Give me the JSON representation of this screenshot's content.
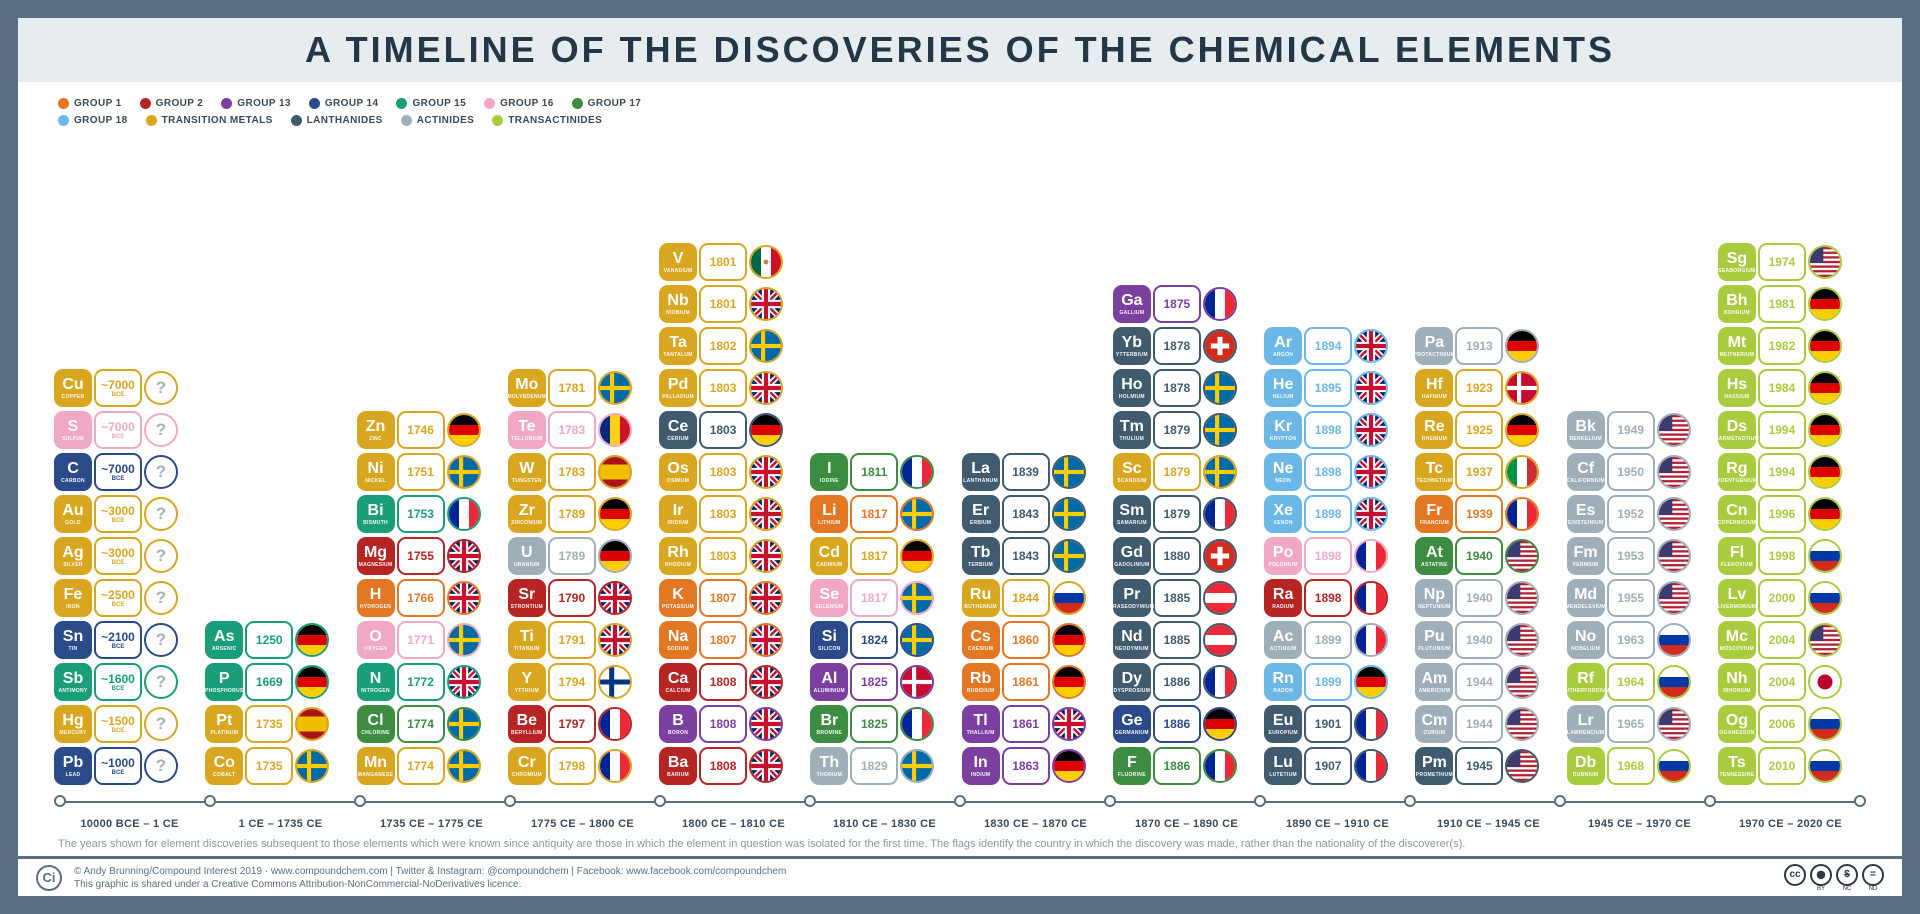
{
  "title": "A TIMELINE OF THE DISCOVERIES OF THE CHEMICAL ELEMENTS",
  "group_colors": {
    "g1": "#e37824",
    "g2": "#b62424",
    "g13": "#7b3fa0",
    "g14": "#2b4a8a",
    "g15": "#1a9e7a",
    "g16": "#f0a8c5",
    "g17": "#3c8c42",
    "g18": "#6bb7e6",
    "tm": "#d9a61f",
    "la": "#3f5b6d",
    "ac": "#9fafba",
    "ta": "#a9cc3e"
  },
  "legend_rows": [
    [
      {
        "label": "GROUP 1",
        "g": "g1"
      },
      {
        "label": "GROUP 2",
        "g": "g2"
      },
      {
        "label": "GROUP 13",
        "g": "g13"
      },
      {
        "label": "GROUP 14",
        "g": "g14"
      },
      {
        "label": "GROUP 15",
        "g": "g15"
      },
      {
        "label": "GROUP 16",
        "g": "g16"
      },
      {
        "label": "GROUP 17",
        "g": "g17"
      }
    ],
    [
      {
        "label": "GROUP 18",
        "g": "g18"
      },
      {
        "label": "TRANSITION METALS",
        "g": "tm"
      },
      {
        "label": "LANTHANIDES",
        "g": "la"
      },
      {
        "label": "ACTINIDES",
        "g": "ac"
      },
      {
        "label": "TRANSACTINIDES",
        "g": "ta"
      }
    ]
  ],
  "axis_labels": [
    "10000 BCE – 1 CE",
    "1 CE – 1735 CE",
    "1735 CE – 1775 CE",
    "1775 CE – 1800 CE",
    "1800 CE – 1810 CE",
    "1810 CE – 1830 CE",
    "1830 CE – 1870 CE",
    "1870 CE – 1890 CE",
    "1890 CE – 1910 CE",
    "1910 CE – 1945 CE",
    "1945 CE – 1970 CE",
    "1970 CE – 2020 CE"
  ],
  "note": "The years shown for element discoveries subsequent to those elements which were known since antiquity are those in which the element in question was isolated for the first time. The flags identify the country in which the discovery was made, rather than the nationality of the discoverer(s).",
  "footer": {
    "line1": "© Andy Brunning/Compound Interest 2019 · www.compoundchem.com  |  Twitter & Instagram: @compoundchem  |  Facebook: www.facebook.com/compoundchem",
    "line2": "This graphic is shared under a Creative Commons Attribution-NonCommercial-NoDerivatives licence.",
    "cc": [
      "CC",
      "BY",
      "NC",
      "ND"
    ]
  },
  "columns": [
    [
      {
        "sym": "Pb",
        "nm": "LEAD",
        "yr": "~1000",
        "era": "BCE",
        "g": "g14",
        "f": "?"
      },
      {
        "sym": "Hg",
        "nm": "MERCURY",
        "yr": "~1500",
        "era": "BCE",
        "g": "tm",
        "f": "?"
      },
      {
        "sym": "Sb",
        "nm": "ANTIMONY",
        "yr": "~1600",
        "era": "BCE",
        "g": "g15",
        "f": "?"
      },
      {
        "sym": "Sn",
        "nm": "TIN",
        "yr": "~2100",
        "era": "BCE",
        "g": "g14",
        "f": "?"
      },
      {
        "sym": "Fe",
        "nm": "IRON",
        "yr": "~2500",
        "era": "BCE",
        "g": "tm",
        "f": "?"
      },
      {
        "sym": "Ag",
        "nm": "SILVER",
        "yr": "~3000",
        "era": "BCE",
        "g": "tm",
        "f": "?"
      },
      {
        "sym": "Au",
        "nm": "GOLD",
        "yr": "~3000",
        "era": "BCE",
        "g": "tm",
        "f": "?"
      },
      {
        "sym": "C",
        "nm": "CARBON",
        "yr": "~7000",
        "era": "BCE",
        "g": "g14",
        "f": "?"
      },
      {
        "sym": "S",
        "nm": "SULFUR",
        "yr": "~7000",
        "era": "BCE",
        "g": "g16",
        "f": "?"
      },
      {
        "sym": "Cu",
        "nm": "COPPER",
        "yr": "~7000",
        "era": "BCE",
        "g": "tm",
        "f": "?"
      }
    ],
    [
      {
        "sym": "Co",
        "nm": "COBALT",
        "yr": "1735",
        "g": "tm",
        "f": "se"
      },
      {
        "sym": "Pt",
        "nm": "PLATINUM",
        "yr": "1735",
        "g": "tm",
        "f": "es"
      },
      {
        "sym": "P",
        "nm": "PHOSPHORUS",
        "yr": "1669",
        "g": "g15",
        "f": "de"
      },
      {
        "sym": "As",
        "nm": "ARSENIC",
        "yr": "1250",
        "g": "g15",
        "f": "de"
      }
    ],
    [
      {
        "sym": "Mn",
        "nm": "MANGANESE",
        "yr": "1774",
        "g": "tm",
        "f": "se"
      },
      {
        "sym": "Cl",
        "nm": "CHLORINE",
        "yr": "1774",
        "g": "g17",
        "f": "se"
      },
      {
        "sym": "N",
        "nm": "NITROGEN",
        "yr": "1772",
        "g": "g15",
        "f": "uk"
      },
      {
        "sym": "O",
        "nm": "OXYGEN",
        "yr": "1771",
        "g": "g16",
        "f": "se"
      },
      {
        "sym": "H",
        "nm": "HYDROGEN",
        "yr": "1766",
        "g": "g1",
        "f": "uk"
      },
      {
        "sym": "Mg",
        "nm": "MAGNESIUM",
        "yr": "1755",
        "g": "g2",
        "f": "uk"
      },
      {
        "sym": "Bi",
        "nm": "BISMUTH",
        "yr": "1753",
        "g": "g15",
        "f": "fr"
      },
      {
        "sym": "Ni",
        "nm": "NICKEL",
        "yr": "1751",
        "g": "tm",
        "f": "se"
      },
      {
        "sym": "Zn",
        "nm": "ZINC",
        "yr": "1746",
        "g": "tm",
        "f": "de"
      }
    ],
    [
      {
        "sym": "Cr",
        "nm": "CHROMIUM",
        "yr": "1798",
        "g": "tm",
        "f": "fr"
      },
      {
        "sym": "Be",
        "nm": "BERYLLIUM",
        "yr": "1797",
        "g": "g2",
        "f": "fr"
      },
      {
        "sym": "Y",
        "nm": "YTTRIUM",
        "yr": "1794",
        "g": "tm",
        "f": "fi"
      },
      {
        "sym": "Ti",
        "nm": "TITANIUM",
        "yr": "1791",
        "g": "tm",
        "f": "uk"
      },
      {
        "sym": "Sr",
        "nm": "STRONTIUM",
        "yr": "1790",
        "g": "g2",
        "f": "uk"
      },
      {
        "sym": "U",
        "nm": "URANIUM",
        "yr": "1789",
        "g": "ac",
        "f": "de"
      },
      {
        "sym": "Zr",
        "nm": "ZIRCONIUM",
        "yr": "1789",
        "g": "tm",
        "f": "de"
      },
      {
        "sym": "W",
        "nm": "TUNGSTEN",
        "yr": "1783",
        "g": "tm",
        "f": "es"
      },
      {
        "sym": "Te",
        "nm": "TELLURIUM",
        "yr": "1783",
        "g": "g16",
        "f": "ro"
      },
      {
        "sym": "Mo",
        "nm": "MOLYBDENUM",
        "yr": "1781",
        "g": "tm",
        "f": "se"
      }
    ],
    [
      {
        "sym": "Ba",
        "nm": "BARIUM",
        "yr": "1808",
        "g": "g2",
        "f": "uk"
      },
      {
        "sym": "B",
        "nm": "BORON",
        "yr": "1808",
        "g": "g13",
        "f": "uk"
      },
      {
        "sym": "Ca",
        "nm": "CALCIUM",
        "yr": "1808",
        "g": "g2",
        "f": "uk"
      },
      {
        "sym": "Na",
        "nm": "SODIUM",
        "yr": "1807",
        "g": "g1",
        "f": "uk"
      },
      {
        "sym": "K",
        "nm": "POTASSIUM",
        "yr": "1807",
        "g": "g1",
        "f": "uk"
      },
      {
        "sym": "Rh",
        "nm": "RHODIUM",
        "yr": "1803",
        "g": "tm",
        "f": "uk"
      },
      {
        "sym": "Ir",
        "nm": "IRIDIUM",
        "yr": "1803",
        "g": "tm",
        "f": "uk"
      },
      {
        "sym": "Os",
        "nm": "OSMIUM",
        "yr": "1803",
        "g": "tm",
        "f": "uk"
      },
      {
        "sym": "Ce",
        "nm": "CERIUM",
        "yr": "1803",
        "g": "la",
        "f": "de"
      },
      {
        "sym": "Pd",
        "nm": "PALLADIUM",
        "yr": "1803",
        "g": "tm",
        "f": "uk"
      },
      {
        "sym": "Ta",
        "nm": "TANTALUM",
        "yr": "1802",
        "g": "tm",
        "f": "se"
      },
      {
        "sym": "Nb",
        "nm": "NIOBIUM",
        "yr": "1801",
        "g": "tm",
        "f": "uk"
      },
      {
        "sym": "V",
        "nm": "VANADIUM",
        "yr": "1801",
        "g": "tm",
        "f": "mx"
      }
    ],
    [
      {
        "sym": "Th",
        "nm": "THORIUM",
        "yr": "1829",
        "g": "ac",
        "f": "se"
      },
      {
        "sym": "Br",
        "nm": "BROMINE",
        "yr": "1825",
        "g": "g17",
        "f": "fr"
      },
      {
        "sym": "Al",
        "nm": "ALUMINIUM",
        "yr": "1825",
        "g": "g13",
        "f": "dk"
      },
      {
        "sym": "Si",
        "nm": "SILICON",
        "yr": "1824",
        "g": "g14",
        "f": "se"
      },
      {
        "sym": "Se",
        "nm": "SELENIUM",
        "yr": "1817",
        "g": "g16",
        "f": "se"
      },
      {
        "sym": "Cd",
        "nm": "CADMIUM",
        "yr": "1817",
        "g": "tm",
        "f": "de"
      },
      {
        "sym": "Li",
        "nm": "LITHIUM",
        "yr": "1817",
        "g": "g1",
        "f": "se"
      },
      {
        "sym": "I",
        "nm": "IODINE",
        "yr": "1811",
        "g": "g17",
        "f": "fr"
      }
    ],
    [
      {
        "sym": "In",
        "nm": "INDIUM",
        "yr": "1863",
        "g": "g13",
        "f": "de"
      },
      {
        "sym": "Tl",
        "nm": "THALLIUM",
        "yr": "1861",
        "g": "g13",
        "f": "uk"
      },
      {
        "sym": "Rb",
        "nm": "RUBIDIUM",
        "yr": "1861",
        "g": "g1",
        "f": "de"
      },
      {
        "sym": "Cs",
        "nm": "CAESIUM",
        "yr": "1860",
        "g": "g1",
        "f": "de"
      },
      {
        "sym": "Ru",
        "nm": "RUTHENIUM",
        "yr": "1844",
        "g": "tm",
        "f": "ru"
      },
      {
        "sym": "Tb",
        "nm": "TERBIUM",
        "yr": "1843",
        "g": "la",
        "f": "se"
      },
      {
        "sym": "Er",
        "nm": "ERBIUM",
        "yr": "1843",
        "g": "la",
        "f": "se"
      },
      {
        "sym": "La",
        "nm": "LANTHANUM",
        "yr": "1839",
        "g": "la",
        "f": "se"
      }
    ],
    [
      {
        "sym": "F",
        "nm": "FLUORINE",
        "yr": "1886",
        "g": "g17",
        "f": "fr"
      },
      {
        "sym": "Ge",
        "nm": "GERMANIUM",
        "yr": "1886",
        "g": "g14",
        "f": "de"
      },
      {
        "sym": "Dy",
        "nm": "DYSPROSIUM",
        "yr": "1886",
        "g": "la",
        "f": "fr"
      },
      {
        "sym": "Nd",
        "nm": "NEODYMIUM",
        "yr": "1885",
        "g": "la",
        "f": "at"
      },
      {
        "sym": "Pr",
        "nm": "PRASEODYMIUM",
        "yr": "1885",
        "g": "la",
        "f": "at"
      },
      {
        "sym": "Gd",
        "nm": "GADOLINIUM",
        "yr": "1880",
        "g": "la",
        "f": "ch"
      },
      {
        "sym": "Sm",
        "nm": "SAMARIUM",
        "yr": "1879",
        "g": "la",
        "f": "fr"
      },
      {
        "sym": "Sc",
        "nm": "SCANDIUM",
        "yr": "1879",
        "g": "tm",
        "f": "se"
      },
      {
        "sym": "Tm",
        "nm": "THULIUM",
        "yr": "1879",
        "g": "la",
        "f": "se"
      },
      {
        "sym": "Ho",
        "nm": "HOLMIUM",
        "yr": "1878",
        "g": "la",
        "f": "se"
      },
      {
        "sym": "Yb",
        "nm": "YTTERBIUM",
        "yr": "1878",
        "g": "la",
        "f": "ch"
      },
      {
        "sym": "Ga",
        "nm": "GALLIUM",
        "yr": "1875",
        "g": "g13",
        "f": "fr"
      }
    ],
    [
      {
        "sym": "Lu",
        "nm": "LUTETIUM",
        "yr": "1907",
        "g": "la",
        "f": "fr"
      },
      {
        "sym": "Eu",
        "nm": "EUROPIUM",
        "yr": "1901",
        "g": "la",
        "f": "fr"
      },
      {
        "sym": "Rn",
        "nm": "RADON",
        "yr": "1899",
        "g": "g18",
        "f": "de"
      },
      {
        "sym": "Ac",
        "nm": "ACTINIUM",
        "yr": "1899",
        "g": "ac",
        "f": "fr"
      },
      {
        "sym": "Ra",
        "nm": "RADIUM",
        "yr": "1898",
        "g": "g2",
        "f": "fr"
      },
      {
        "sym": "Po",
        "nm": "POLONIUM",
        "yr": "1898",
        "g": "g16",
        "f": "fr"
      },
      {
        "sym": "Xe",
        "nm": "XENON",
        "yr": "1898",
        "g": "g18",
        "f": "uk"
      },
      {
        "sym": "Ne",
        "nm": "NEON",
        "yr": "1898",
        "g": "g18",
        "f": "uk"
      },
      {
        "sym": "Kr",
        "nm": "KRYPTON",
        "yr": "1898",
        "g": "g18",
        "f": "uk"
      },
      {
        "sym": "He",
        "nm": "HELIUM",
        "yr": "1895",
        "g": "g18",
        "f": "uk"
      },
      {
        "sym": "Ar",
        "nm": "ARGON",
        "yr": "1894",
        "g": "g18",
        "f": "uk"
      }
    ],
    [
      {
        "sym": "Pm",
        "nm": "PROMETHIUM",
        "yr": "1945",
        "g": "la",
        "f": "us"
      },
      {
        "sym": "Cm",
        "nm": "CURIUM",
        "yr": "1944",
        "g": "ac",
        "f": "us"
      },
      {
        "sym": "Am",
        "nm": "AMERICIUM",
        "yr": "1944",
        "g": "ac",
        "f": "us"
      },
      {
        "sym": "Pu",
        "nm": "PLUTONIUM",
        "yr": "1940",
        "g": "ac",
        "f": "us"
      },
      {
        "sym": "Np",
        "nm": "NEPTUNIUM",
        "yr": "1940",
        "g": "ac",
        "f": "us"
      },
      {
        "sym": "At",
        "nm": "ASTATINE",
        "yr": "1940",
        "g": "g17",
        "f": "us"
      },
      {
        "sym": "Fr",
        "nm": "FRANCIUM",
        "yr": "1939",
        "g": "g1",
        "f": "fr"
      },
      {
        "sym": "Tc",
        "nm": "TECHNETIUM",
        "yr": "1937",
        "g": "tm",
        "f": "it"
      },
      {
        "sym": "Re",
        "nm": "RHENIUM",
        "yr": "1925",
        "g": "tm",
        "f": "de"
      },
      {
        "sym": "Hf",
        "nm": "HAFNIUM",
        "yr": "1923",
        "g": "tm",
        "f": "dk"
      },
      {
        "sym": "Pa",
        "nm": "PROTACTINIUM",
        "yr": "1913",
        "g": "ac",
        "f": "de"
      }
    ],
    [
      {
        "sym": "Db",
        "nm": "DUBNIUM",
        "yr": "1968",
        "g": "ta",
        "f": "ru"
      },
      {
        "sym": "Lr",
        "nm": "LAWRENCIUM",
        "yr": "1965",
        "g": "ac",
        "f": "us"
      },
      {
        "sym": "Rf",
        "nm": "RUTHERFORDIUM",
        "yr": "1964",
        "g": "ta",
        "f": "ru"
      },
      {
        "sym": "No",
        "nm": "NOBELIUM",
        "yr": "1963",
        "g": "ac",
        "f": "ru"
      },
      {
        "sym": "Md",
        "nm": "MENDELEVIUM",
        "yr": "1955",
        "g": "ac",
        "f": "us"
      },
      {
        "sym": "Fm",
        "nm": "FERMIUM",
        "yr": "1953",
        "g": "ac",
        "f": "us"
      },
      {
        "sym": "Es",
        "nm": "EINSTEINIUM",
        "yr": "1952",
        "g": "ac",
        "f": "us"
      },
      {
        "sym": "Cf",
        "nm": "CALIFORNIUM",
        "yr": "1950",
        "g": "ac",
        "f": "us"
      },
      {
        "sym": "Bk",
        "nm": "BERKELIUM",
        "yr": "1949",
        "g": "ac",
        "f": "us"
      }
    ],
    [
      {
        "sym": "Ts",
        "nm": "TENNESSINE",
        "yr": "2010",
        "g": "ta",
        "f": "ru"
      },
      {
        "sym": "Og",
        "nm": "OGANESSON",
        "yr": "2006",
        "g": "ta",
        "f": "ru"
      },
      {
        "sym": "Nh",
        "nm": "NIHONIUM",
        "yr": "2004",
        "g": "ta",
        "f": "jp"
      },
      {
        "sym": "Mc",
        "nm": "MOSCOVIUM",
        "yr": "2004",
        "g": "ta",
        "f": "us"
      },
      {
        "sym": "Lv",
        "nm": "LIVERMORIUM",
        "yr": "2000",
        "g": "ta",
        "f": "ru"
      },
      {
        "sym": "Fl",
        "nm": "FLEROVIUM",
        "yr": "1998",
        "g": "ta",
        "f": "ru"
      },
      {
        "sym": "Cn",
        "nm": "COPERNICIUM",
        "yr": "1996",
        "g": "ta",
        "f": "de"
      },
      {
        "sym": "Rg",
        "nm": "ROENTGENIUM",
        "yr": "1994",
        "g": "ta",
        "f": "de"
      },
      {
        "sym": "Ds",
        "nm": "DARMSTADTIUM",
        "yr": "1994",
        "g": "ta",
        "f": "de"
      },
      {
        "sym": "Hs",
        "nm": "HASSIUM",
        "yr": "1984",
        "g": "ta",
        "f": "de"
      },
      {
        "sym": "Mt",
        "nm": "MEITNERIUM",
        "yr": "1982",
        "g": "ta",
        "f": "de"
      },
      {
        "sym": "Bh",
        "nm": "BOHRIUM",
        "yr": "1981",
        "g": "ta",
        "f": "de"
      },
      {
        "sym": "Sg",
        "nm": "SEABORGIUM",
        "yr": "1974",
        "g": "ta",
        "f": "us"
      }
    ]
  ]
}
